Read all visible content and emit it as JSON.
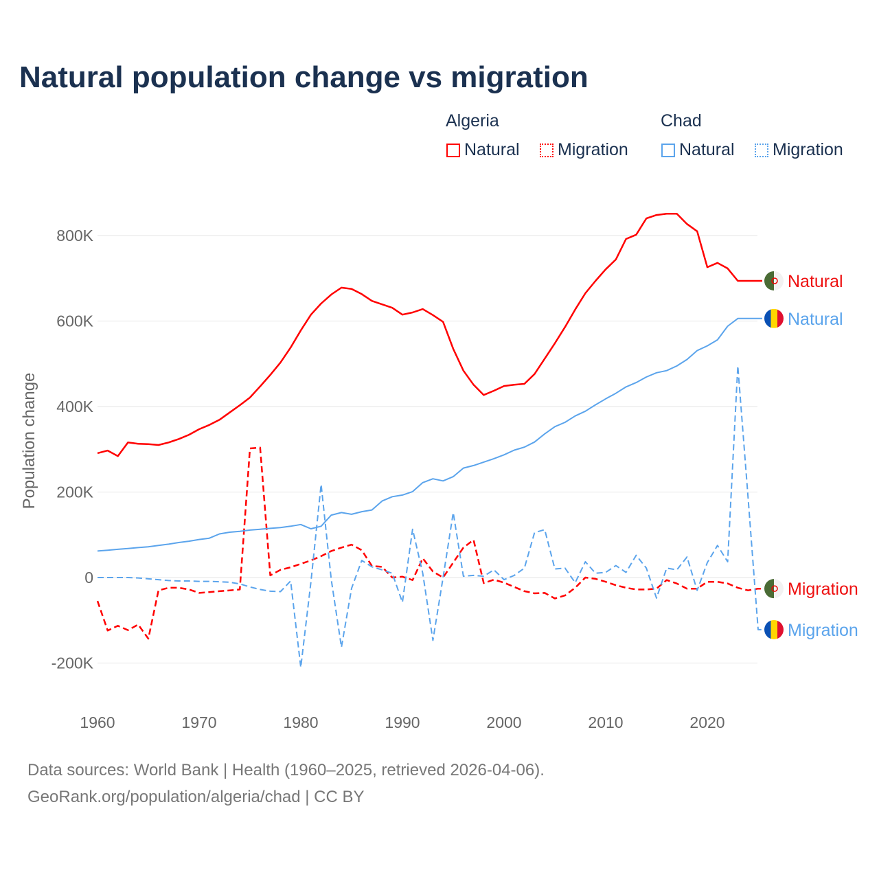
{
  "chart_data": {
    "type": "line",
    "title": "Natural population change vs migration",
    "ylabel": "Population change",
    "xlabel": "",
    "xlim": [
      1960,
      2025
    ],
    "ylim": [
      -300000,
      900000
    ],
    "x_ticks": [
      1960,
      1970,
      1980,
      1990,
      2000,
      2010,
      2020
    ],
    "y_ticks": [
      {
        "v": -200000,
        "label": "-200K"
      },
      {
        "v": 0,
        "label": "0"
      },
      {
        "v": 200000,
        "label": "200K"
      },
      {
        "v": 400000,
        "label": "400K"
      },
      {
        "v": 600000,
        "label": "600K"
      },
      {
        "v": 800000,
        "label": "800K"
      }
    ],
    "grid": true,
    "legend": {
      "position": "top-right",
      "groups": [
        {
          "name": "Algeria",
          "items": [
            "Natural",
            "Migration"
          ]
        },
        {
          "name": "Chad",
          "items": [
            "Natural",
            "Migration"
          ]
        }
      ]
    },
    "x_start": 1960,
    "series": [
      {
        "name": "Algeria Natural",
        "country": "Algeria",
        "kind": "Natural",
        "color": "#ff0000",
        "dash": false,
        "end_label": "Natural",
        "values_k": [
          291,
          297,
          284,
          316,
          313,
          312,
          310,
          316,
          324,
          334,
          347,
          357,
          369,
          386,
          403,
          421,
          447,
          474,
          503,
          538,
          578,
          615,
          641,
          662,
          678,
          675,
          663,
          647,
          639,
          631,
          615,
          620,
          628,
          614,
          598,
          535,
          484,
          451,
          427,
          437,
          448,
          451,
          453,
          476,
          512,
          548,
          586,
          627,
          665,
          694,
          721,
          744,
          792,
          802,
          840,
          848,
          851,
          851,
          827,
          810,
          726,
          736,
          723,
          694,
          694,
          694
        ]
      },
      {
        "name": "Algeria Migration",
        "country": "Algeria",
        "kind": "Migration",
        "color": "#ff0000",
        "dash": true,
        "end_label": "Migration",
        "values_k": [
          -55,
          -124,
          -113,
          -123,
          -110,
          -143,
          -30,
          -24,
          -24,
          -28,
          -36,
          -34,
          -32,
          -30,
          -28,
          302,
          304,
          5,
          18,
          24,
          32,
          40,
          50,
          62,
          70,
          77,
          64,
          27,
          25,
          0,
          2,
          -6,
          45,
          14,
          0,
          35,
          70,
          88,
          -13,
          -5,
          -12,
          -22,
          -32,
          -37,
          -36,
          -49,
          -42,
          -24,
          0,
          -3,
          -10,
          -18,
          -24,
          -28,
          -28,
          -26,
          -6,
          -14,
          -26,
          -26,
          -10,
          -10,
          -14,
          -24,
          -30,
          -26
        ]
      },
      {
        "name": "Chad Natural",
        "country": "Chad",
        "kind": "Natural",
        "color": "#5ba4ec",
        "dash": false,
        "end_label": "Natural",
        "values_k": [
          62,
          64,
          66,
          68,
          70,
          72,
          75,
          78,
          82,
          85,
          89,
          92,
          102,
          106,
          108,
          111,
          113,
          115,
          117,
          120,
          124,
          114,
          120,
          146,
          152,
          148,
          154,
          158,
          179,
          189,
          193,
          201,
          222,
          231,
          226,
          236,
          256,
          262,
          270,
          278,
          287,
          298,
          305,
          317,
          336,
          353,
          363,
          378,
          389,
          404,
          418,
          431,
          446,
          456,
          469,
          479,
          484,
          495,
          510,
          531,
          542,
          556,
          588,
          606,
          606,
          606
        ]
      },
      {
        "name": "Chad Migration",
        "country": "Chad",
        "kind": "Migration",
        "color": "#5ba4ec",
        "dash": true,
        "end_label": "Migration",
        "values_k": [
          0,
          0,
          0,
          0,
          -1,
          -3,
          -5,
          -7,
          -8,
          -8,
          -9,
          -9,
          -10,
          -11,
          -15,
          -22,
          -28,
          -32,
          -33,
          -8,
          -210,
          -10,
          218,
          -5,
          -163,
          -25,
          40,
          25,
          18,
          10,
          -58,
          113,
          10,
          -147,
          0,
          152,
          3,
          5,
          3,
          18,
          -5,
          5,
          22,
          105,
          112,
          20,
          22,
          -12,
          37,
          10,
          12,
          28,
          12,
          52,
          22,
          -48,
          22,
          18,
          48,
          -30,
          35,
          75,
          37,
          495,
          190,
          -122
        ]
      }
    ]
  },
  "legend": {
    "algeria": "Algeria",
    "chad": "Chad",
    "natural": "Natural",
    "migration": "Migration"
  },
  "footer": {
    "line1": "Data sources: World Bank | Health (1960–2025, retrieved 2026-04-06).",
    "line2": "GeoRank.org/population/algeria/chad | CC BY"
  }
}
